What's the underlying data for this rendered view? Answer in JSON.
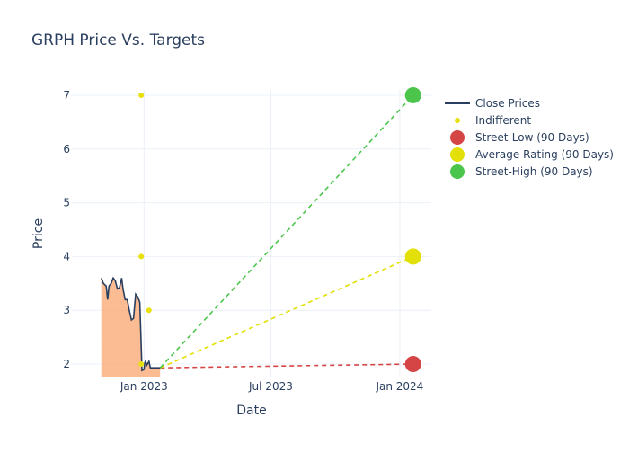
{
  "chart_data": {
    "type": "line",
    "title": "GRPH Price Vs. Targets",
    "xlabel": "Date",
    "ylabel": "Price",
    "x_range": [
      "2022-09-20",
      "2024-02-15"
    ],
    "ylim": [
      1.75,
      7.1
    ],
    "x_ticks": [
      {
        "date": "2023-01-01",
        "label": "Jan 2023"
      },
      {
        "date": "2023-07-01",
        "label": "Jul 2023"
      },
      {
        "date": "2024-01-01",
        "label": "Jan 2024"
      }
    ],
    "y_ticks": [
      2,
      3,
      4,
      5,
      6,
      7
    ],
    "grid": true,
    "legend_position": "top-right",
    "colors": {
      "close": "#2a3f5f",
      "area": "#f9a56f",
      "indifferent": "#e8e010",
      "low": "#d64545",
      "avg": "#e2e006",
      "high": "#4cc54c",
      "grid": "#ebf0f8",
      "text": "#2a3f5f"
    },
    "series": [
      {
        "name": "Close Prices",
        "kind": "line",
        "x": [
          "2022-11-01",
          "2022-11-04",
          "2022-11-08",
          "2022-11-10",
          "2022-11-12",
          "2022-11-15",
          "2022-11-18",
          "2022-11-21",
          "2022-11-24",
          "2022-11-27",
          "2022-11-30",
          "2022-12-02",
          "2022-12-05",
          "2022-12-08",
          "2022-12-11",
          "2022-12-14",
          "2022-12-17",
          "2022-12-20",
          "2022-12-23",
          "2022-12-26",
          "2022-12-29",
          "2023-01-01",
          "2023-01-02",
          "2023-01-03",
          "2023-01-05",
          "2023-01-08",
          "2023-01-10",
          "2023-01-12",
          "2023-01-15",
          "2023-01-18",
          "2023-01-21",
          "2023-01-24"
        ],
        "y": [
          3.6,
          3.5,
          3.45,
          3.2,
          3.45,
          3.5,
          3.6,
          3.55,
          3.4,
          3.42,
          3.6,
          3.4,
          3.2,
          3.2,
          3.0,
          2.82,
          2.85,
          3.3,
          3.25,
          3.15,
          1.88,
          1.9,
          2.02,
          2.05,
          1.98,
          2.05,
          1.93,
          1.93,
          1.93,
          1.93,
          1.93,
          1.93
        ]
      },
      {
        "name": "Indifferent",
        "kind": "markers",
        "x": [
          "2022-12-28",
          "2022-12-28",
          "2022-12-28",
          "2023-01-08"
        ],
        "y": [
          7,
          4,
          2,
          3
        ]
      },
      {
        "name": "Street-Low (90 Days)",
        "kind": "target",
        "x": [
          "2023-01-24",
          "2024-01-20"
        ],
        "y": [
          1.93,
          2
        ]
      },
      {
        "name": "Average Rating (90 Days)",
        "kind": "target",
        "x": [
          "2023-01-24",
          "2024-01-20"
        ],
        "y": [
          1.93,
          4
        ]
      },
      {
        "name": "Street-High (90 Days)",
        "kind": "target",
        "x": [
          "2023-01-24",
          "2024-01-20"
        ],
        "y": [
          1.93,
          7
        ]
      }
    ]
  }
}
